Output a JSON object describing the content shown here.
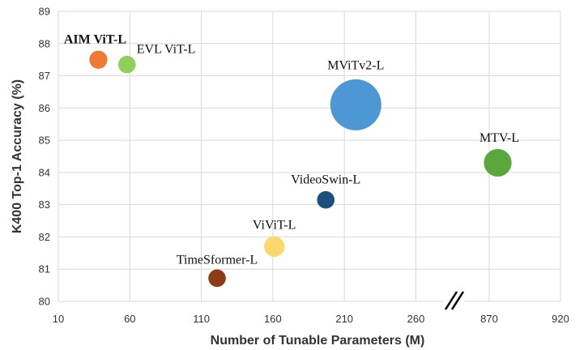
{
  "chart_data": {
    "type": "scatter",
    "xlabel": "Number of Tunable Parameters (M)",
    "ylabel": "K400 Top-1 Accuracy (%)",
    "ylim": [
      80,
      89
    ],
    "y_ticks": [
      "80",
      "81",
      "82",
      "83",
      "84",
      "85",
      "86",
      "87",
      "88",
      "89"
    ],
    "x_ticks": [
      "10",
      "60",
      "110",
      "160",
      "210",
      "260",
      "870",
      "920"
    ],
    "x_axis_break": "between 260 and 870",
    "grid": true,
    "points": [
      {
        "label": "AIM ViT-L",
        "x": 38,
        "y": 87.5,
        "size": 0.62,
        "color": "#f07935",
        "bold": true
      },
      {
        "label": "EVL ViT-L",
        "x": 58,
        "y": 87.35,
        "size": 0.6,
        "color": "#8ed05a",
        "bold": false
      },
      {
        "label": "MViTv2-L",
        "x": 218,
        "y": 86.1,
        "size": 1.75,
        "color": "#4d97d4",
        "bold": false
      },
      {
        "label": "MTV-L",
        "x": 876,
        "y": 84.3,
        "size": 0.95,
        "color": "#5aa83c",
        "bold": false
      },
      {
        "label": "VideoSwin-L",
        "x": 197,
        "y": 83.15,
        "size": 0.6,
        "color": "#1b4f7c",
        "bold": false
      },
      {
        "label": "ViViT-L",
        "x": 161,
        "y": 81.7,
        "size": 0.7,
        "color": "#fbd86e",
        "bold": false
      },
      {
        "label": "TimeSformer-L",
        "x": 121,
        "y": 80.72,
        "size": 0.6,
        "color": "#8c3c14",
        "bold": false
      }
    ]
  }
}
